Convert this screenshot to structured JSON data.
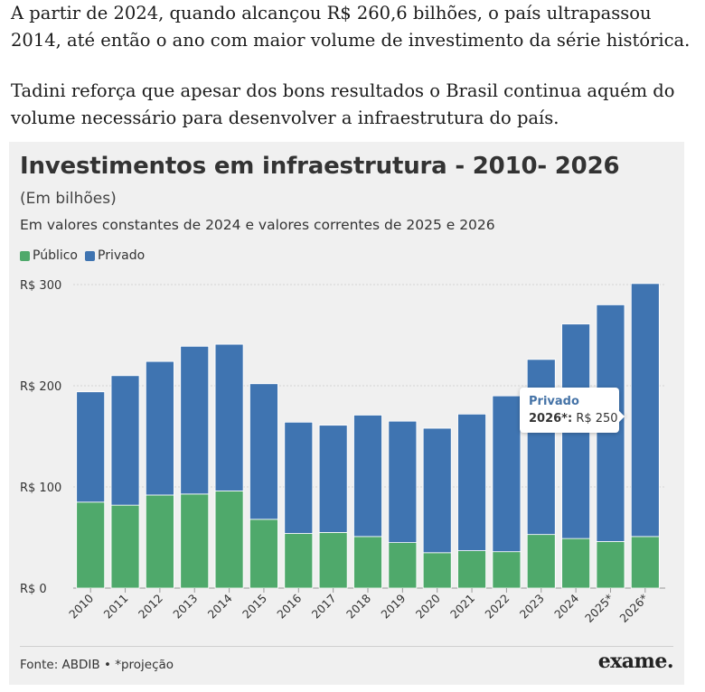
{
  "article": {
    "paragraph1": "A partir de 2024, quando alcançou R$ 260,6 bilhões, o país ultrapassou 2014, até então o ano com maior volume de investimento da série histórica.",
    "paragraph2": "Tadini reforça que apesar dos bons resultados o Brasil continua aquém do volume necessário para desenvolver a infraestrutura do país."
  },
  "chart_data": {
    "type": "bar",
    "stacked": true,
    "title": "Investimentos em infraestrutura - 2010- 2026",
    "subtitle": "(Em bilhões)",
    "note": "Em valores constantes de 2024 e valores correntes de 2025 e 2026",
    "categories": [
      "2010",
      "2011",
      "2012",
      "2013",
      "2014",
      "2015",
      "2016",
      "2017",
      "2018",
      "2019",
      "2020",
      "2021",
      "2022",
      "2023",
      "2024",
      "2025*",
      "2026*"
    ],
    "series": [
      {
        "name": "Público",
        "color": "#4fa96b",
        "values": [
          85,
          82,
          92,
          93,
          96,
          68,
          54,
          55,
          51,
          45,
          35,
          37,
          36,
          53,
          49,
          46,
          51
        ]
      },
      {
        "name": "Privado",
        "color": "#3f74b1",
        "values": [
          109,
          128,
          132,
          146,
          145,
          134,
          110,
          106,
          120,
          120,
          123,
          135,
          154,
          173,
          212,
          234,
          250
        ]
      }
    ],
    "ylim": [
      0,
      300
    ],
    "yticks": [
      0,
      100,
      200,
      300
    ],
    "ytick_labels": [
      "R$ 0",
      "R$ 100",
      "R$ 200",
      "R$ 300"
    ],
    "xlabel": "",
    "ylabel": "",
    "grid": true,
    "legend_position": "top-left",
    "tooltip": {
      "series": "Privado",
      "category": "2026*:",
      "value": "R$ 250"
    }
  },
  "footer": {
    "source": "Fonte: ABDIB • *projeção",
    "logo": "exame."
  }
}
